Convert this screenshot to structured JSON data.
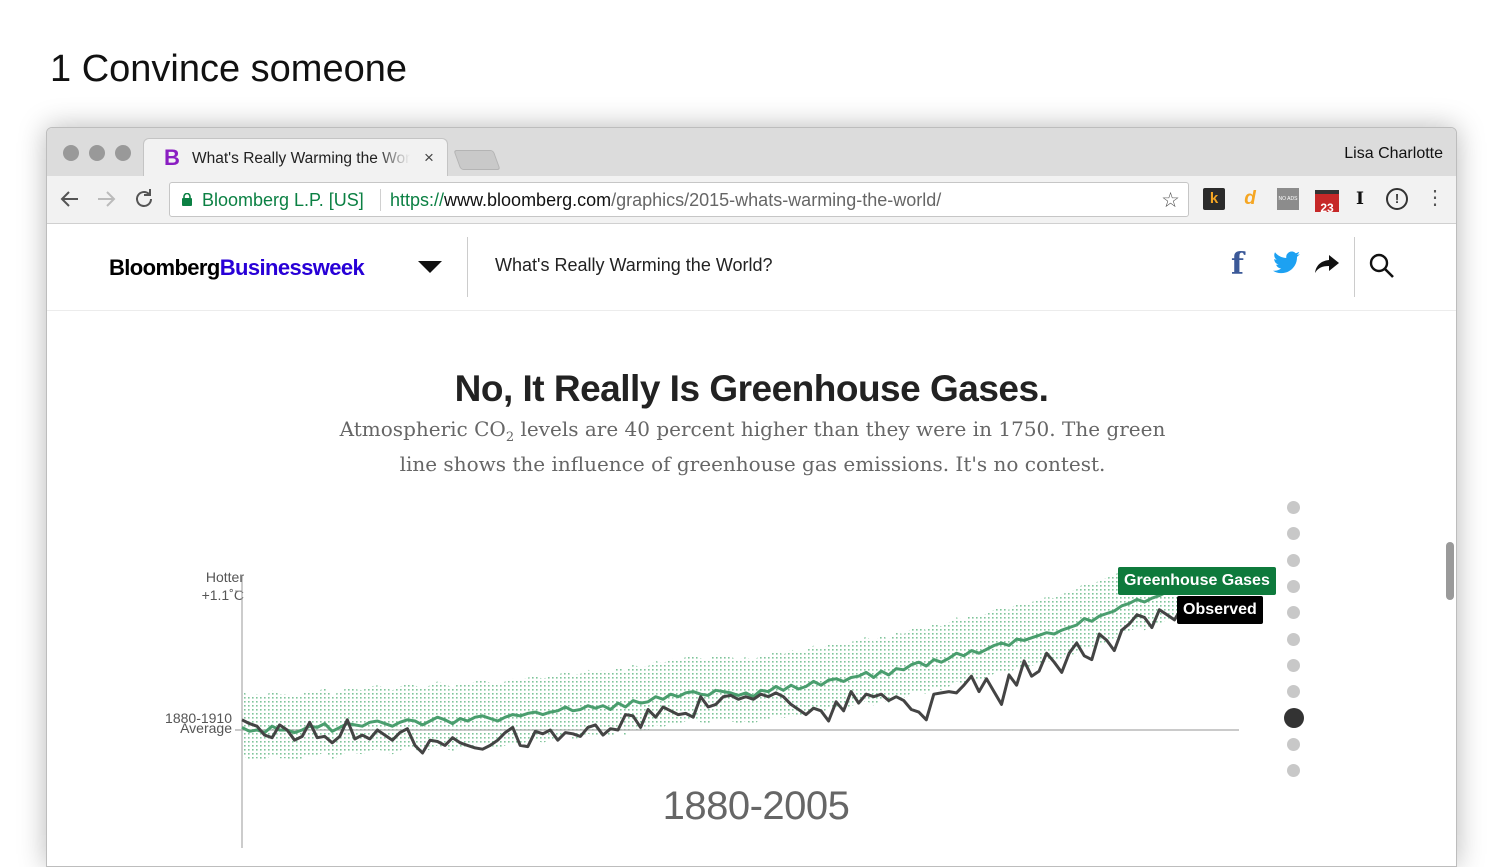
{
  "slide": {
    "title": "1 Convince someone"
  },
  "browser": {
    "tab_title": "What's Really Warming the World? | Bloomberg",
    "tab_close": "×",
    "profile": "Lisa Charlotte",
    "ev_label": "Bloomberg L.P. [US]",
    "url_scheme": "https://",
    "url_host": "www.bloomberg.com",
    "url_path": "/graphics/2015-whats-warming-the-world/",
    "extensions": [
      "k",
      "d",
      "NO ADS",
      "23",
      "I",
      "!"
    ]
  },
  "site": {
    "logo_part1": "Bloomberg",
    "logo_part2": "Businessweek",
    "article_title": "What's Really Warming the World?"
  },
  "article": {
    "headline": "No, It Really Is Greenhouse Gases.",
    "dek_part1": "Atmospheric CO",
    "dek_sub": "2",
    "dek_part2": " levels are 40 percent higher than they were in 1750. The green line shows the influence of greenhouse gas emissions. It's no contest."
  },
  "step_nav": {
    "count": 11,
    "active_index": 8
  },
  "chart_data": {
    "type": "line",
    "x_start": 1880,
    "x_end": 2005,
    "years_label": "1880-2005",
    "y_top_label_1": "Hotter",
    "y_top_label_2": "+1.1˚C",
    "baseline_label_1": "1880-1910",
    "baseline_label_2": "Average",
    "ylim": [
      -0.3,
      1.1
    ],
    "series": [
      {
        "name": "Greenhouse Gases",
        "color": "#4a9e6e",
        "values": [
          0.02,
          -0.01,
          0.0,
          -0.02,
          0.03,
          0.0,
          0.0,
          -0.02,
          0.0,
          0.03,
          0.02,
          0.05,
          -0.01,
          0.02,
          0.05,
          0.04,
          0.03,
          0.06,
          0.07,
          0.05,
          0.03,
          0.06,
          0.08,
          0.07,
          0.04,
          0.07,
          0.1,
          0.08,
          0.05,
          0.09,
          0.07,
          0.1,
          0.11,
          0.09,
          0.07,
          0.1,
          0.12,
          0.11,
          0.13,
          0.14,
          0.12,
          0.14,
          0.15,
          0.18,
          0.15,
          0.16,
          0.19,
          0.17,
          0.19,
          0.16,
          0.21,
          0.18,
          0.23,
          0.21,
          0.22,
          0.26,
          0.24,
          0.28,
          0.26,
          0.29,
          0.3,
          0.28,
          0.27,
          0.31,
          0.3,
          0.29,
          0.27,
          0.29,
          0.26,
          0.31,
          0.3,
          0.34,
          0.31,
          0.35,
          0.32,
          0.34,
          0.38,
          0.35,
          0.39,
          0.4,
          0.38,
          0.41,
          0.42,
          0.45,
          0.41,
          0.46,
          0.43,
          0.48,
          0.47,
          0.51,
          0.53,
          0.5,
          0.55,
          0.53,
          0.56,
          0.6,
          0.58,
          0.62,
          0.6,
          0.63,
          0.66,
          0.68,
          0.66,
          0.71,
          0.7,
          0.72,
          0.74,
          0.76,
          0.75,
          0.78,
          0.8,
          0.82,
          0.87,
          0.85,
          0.89,
          0.91,
          0.93,
          0.97,
          0.99,
          1.02,
          1.0,
          1.03,
          1.05,
          1.08,
          1.1,
          1.12
        ]
      },
      {
        "name": "Observed",
        "color": "#444444",
        "values": [
          0.08,
          0.05,
          0.03,
          -0.04,
          -0.06,
          0.04,
          0.0,
          -0.08,
          -0.05,
          0.06,
          -0.06,
          -0.05,
          -0.1,
          -0.05,
          0.08,
          -0.07,
          -0.04,
          -0.07,
          0.0,
          -0.04,
          -0.08,
          -0.02,
          0.01,
          -0.12,
          -0.18,
          -0.08,
          -0.09,
          -0.12,
          -0.06,
          -0.1,
          -0.12,
          -0.14,
          -0.15,
          -0.12,
          -0.08,
          -0.02,
          0.02,
          -0.12,
          -0.13,
          -0.01,
          -0.03,
          0.0,
          -0.08,
          -0.02,
          -0.03,
          -0.05,
          0.02,
          0.04,
          -0.04,
          0.01,
          0.0,
          0.12,
          0.11,
          0.02,
          0.16,
          0.1,
          0.18,
          0.15,
          0.12,
          0.13,
          0.1,
          0.26,
          0.18,
          0.2,
          0.26,
          0.27,
          0.24,
          0.26,
          0.24,
          0.28,
          0.26,
          0.29,
          0.26,
          0.2,
          0.16,
          0.12,
          0.17,
          0.15,
          0.07,
          0.22,
          0.15,
          0.3,
          0.21,
          0.28,
          0.26,
          0.28,
          0.23,
          0.26,
          0.23,
          0.16,
          0.14,
          0.08,
          0.28,
          0.29,
          0.3,
          0.29,
          0.35,
          0.42,
          0.3,
          0.4,
          0.3,
          0.2,
          0.43,
          0.35,
          0.54,
          0.42,
          0.46,
          0.6,
          0.53,
          0.45,
          0.6,
          0.68,
          0.58,
          0.55,
          0.75,
          0.7,
          0.62,
          0.78,
          0.83,
          0.9,
          0.88,
          0.8,
          0.94,
          0.9,
          0.86,
          0.96
        ]
      }
    ]
  }
}
